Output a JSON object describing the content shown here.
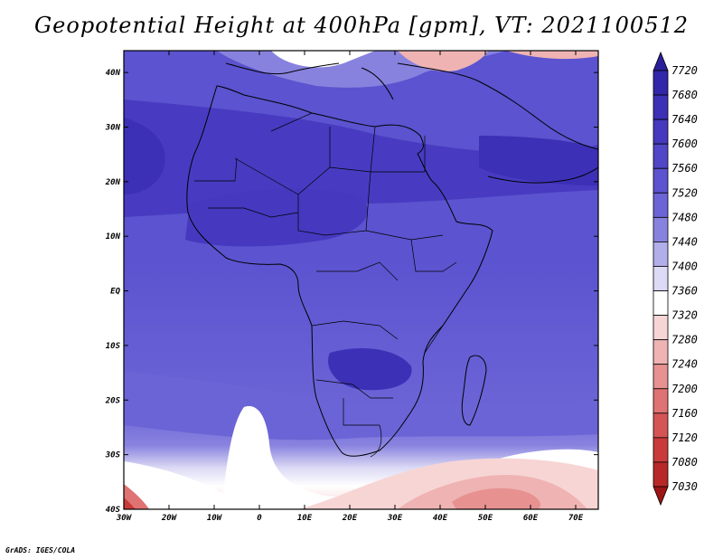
{
  "title": "Geopotential Height at 400hPa [gpm], VT: 2021100512",
  "credit": "GrADS: IGES/COLA",
  "map": {
    "lon_ticks": [
      "30W",
      "20W",
      "10W",
      "0",
      "10E",
      "20E",
      "30E",
      "40E",
      "50E",
      "60E",
      "70E"
    ],
    "lat_ticks": [
      "40N",
      "30N",
      "20N",
      "10N",
      "EQ",
      "10S",
      "20S",
      "30S",
      "40S"
    ],
    "extent": {
      "lon_min": -30,
      "lon_max": 75,
      "lat_min": -40,
      "lat_max": 44
    }
  },
  "colorbar": {
    "levels": [
      "7720",
      "7680",
      "7640",
      "7600",
      "7560",
      "7520",
      "7480",
      "7440",
      "7400",
      "7360",
      "7320",
      "7280",
      "7240",
      "7200",
      "7160",
      "7120",
      "7080",
      "7030"
    ],
    "colors": [
      "#2a1f9a",
      "#3226a9",
      "#3c30b6",
      "#4638bf",
      "#5046c7",
      "#5b53cf",
      "#6b64d6",
      "#8882df",
      "#b2aeea",
      "#dcdaf5",
      "#ffffff",
      "#f7d5d5",
      "#efb3b3",
      "#e79191",
      "#df7272",
      "#d55555",
      "#cb3a3a",
      "#b82828",
      "#9c1414"
    ]
  },
  "palette": {
    "high": "#3226a9",
    "mid": "#5b53cf",
    "low": "#d55555",
    "neutral": "#ffffff"
  }
}
